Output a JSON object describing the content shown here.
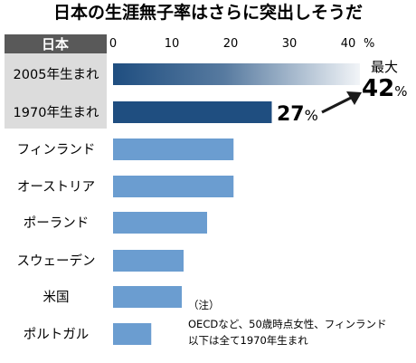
{
  "chart_data": {
    "type": "bar",
    "orientation": "horizontal",
    "title": "日本の生涯無子率はさらに突出しそうだ",
    "group_label": "日本",
    "x_ticks": [
      "0",
      "10",
      "20",
      "30",
      "40"
    ],
    "unit": "%",
    "xlim": [
      0,
      40
    ],
    "grid": false,
    "categories": [
      "2005年生まれ",
      "1970年生まれ",
      "フィンランド",
      "オーストリア",
      "ポーランド",
      "スウェーデン",
      "米国",
      "ポルトガル"
    ],
    "values": [
      42,
      27,
      20.5,
      20.5,
      16,
      12,
      11.7,
      6.5
    ],
    "annotations": [
      {
        "category": "2005年生まれ",
        "text_top": "最大",
        "value_text": "42",
        "unit_text": "%"
      },
      {
        "category": "1970年生まれ",
        "value_text": "27",
        "unit_text": "%"
      }
    ],
    "note_lines": [
      "（注）",
      "OECDなど、50歳時点女性、フィンランド",
      "以下は全て1970年生まれ"
    ],
    "colors": {
      "japan_bar": "#1f4e80",
      "other_bar": "#6b9dd0",
      "japan_label_bg": "#dcdcdc",
      "header_bg": "#595959"
    }
  }
}
